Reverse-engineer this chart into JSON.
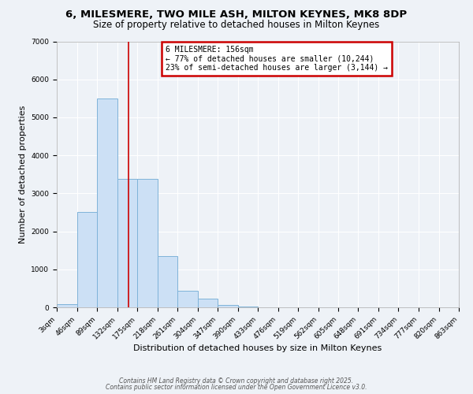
{
  "title": "6, MILESMERE, TWO MILE ASH, MILTON KEYNES, MK8 8DP",
  "subtitle": "Size of property relative to detached houses in Milton Keynes",
  "xlabel": "Distribution of detached houses by size in Milton Keynes",
  "ylabel": "Number of detached properties",
  "bar_values": [
    80,
    2500,
    5500,
    3380,
    3380,
    1350,
    430,
    220,
    70,
    20,
    0,
    0,
    0,
    0,
    0,
    0,
    0,
    0,
    0,
    0
  ],
  "bar_edges": [
    3,
    46,
    89,
    132,
    175,
    218,
    261,
    304,
    347,
    390,
    433,
    476,
    519,
    562,
    605,
    648,
    691,
    734,
    777,
    820,
    863
  ],
  "tick_labels": [
    "3sqm",
    "46sqm",
    "89sqm",
    "132sqm",
    "175sqm",
    "218sqm",
    "261sqm",
    "304sqm",
    "347sqm",
    "390sqm",
    "433sqm",
    "476sqm",
    "519sqm",
    "562sqm",
    "605sqm",
    "648sqm",
    "691sqm",
    "734sqm",
    "777sqm",
    "820sqm",
    "863sqm"
  ],
  "bar_color": "#cce0f5",
  "bar_edgecolor": "#7fb3d9",
  "vline_x": 156,
  "vline_color": "#cc0000",
  "annotation_title": "6 MILESMERE: 156sqm",
  "annotation_line1": "← 77% of detached houses are smaller (10,244)",
  "annotation_line2": "23% of semi-detached houses are larger (3,144) →",
  "annotation_box_color": "#cc0000",
  "ylim": [
    0,
    7000
  ],
  "yticks": [
    0,
    1000,
    2000,
    3000,
    4000,
    5000,
    6000,
    7000
  ],
  "background_color": "#eef2f7",
  "grid_color": "#ffffff",
  "footer1": "Contains HM Land Registry data © Crown copyright and database right 2025.",
  "footer2": "Contains public sector information licensed under the Open Government Licence v3.0.",
  "title_fontsize": 9.5,
  "subtitle_fontsize": 8.5,
  "xlabel_fontsize": 8,
  "ylabel_fontsize": 8,
  "tick_fontsize": 6.5,
  "ann_fontsize": 7,
  "footer_fontsize": 5.5
}
